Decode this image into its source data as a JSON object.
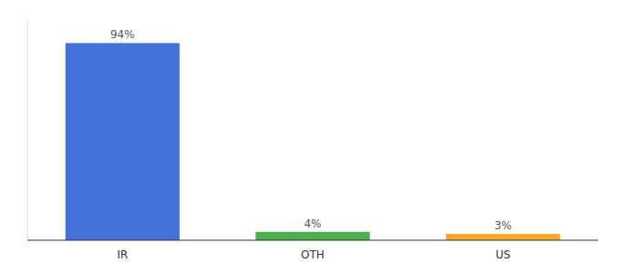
{
  "chart_data": {
    "type": "bar",
    "categories": [
      "IR",
      "OTH",
      "US"
    ],
    "values": [
      94,
      4,
      3
    ],
    "value_labels": [
      "94%",
      "4%",
      "3%"
    ],
    "colors": [
      "#4472db",
      "#4caf50",
      "#ffa726"
    ],
    "ylim": [
      0,
      105
    ],
    "data_labels": true,
    "tick_labels": "x"
  }
}
